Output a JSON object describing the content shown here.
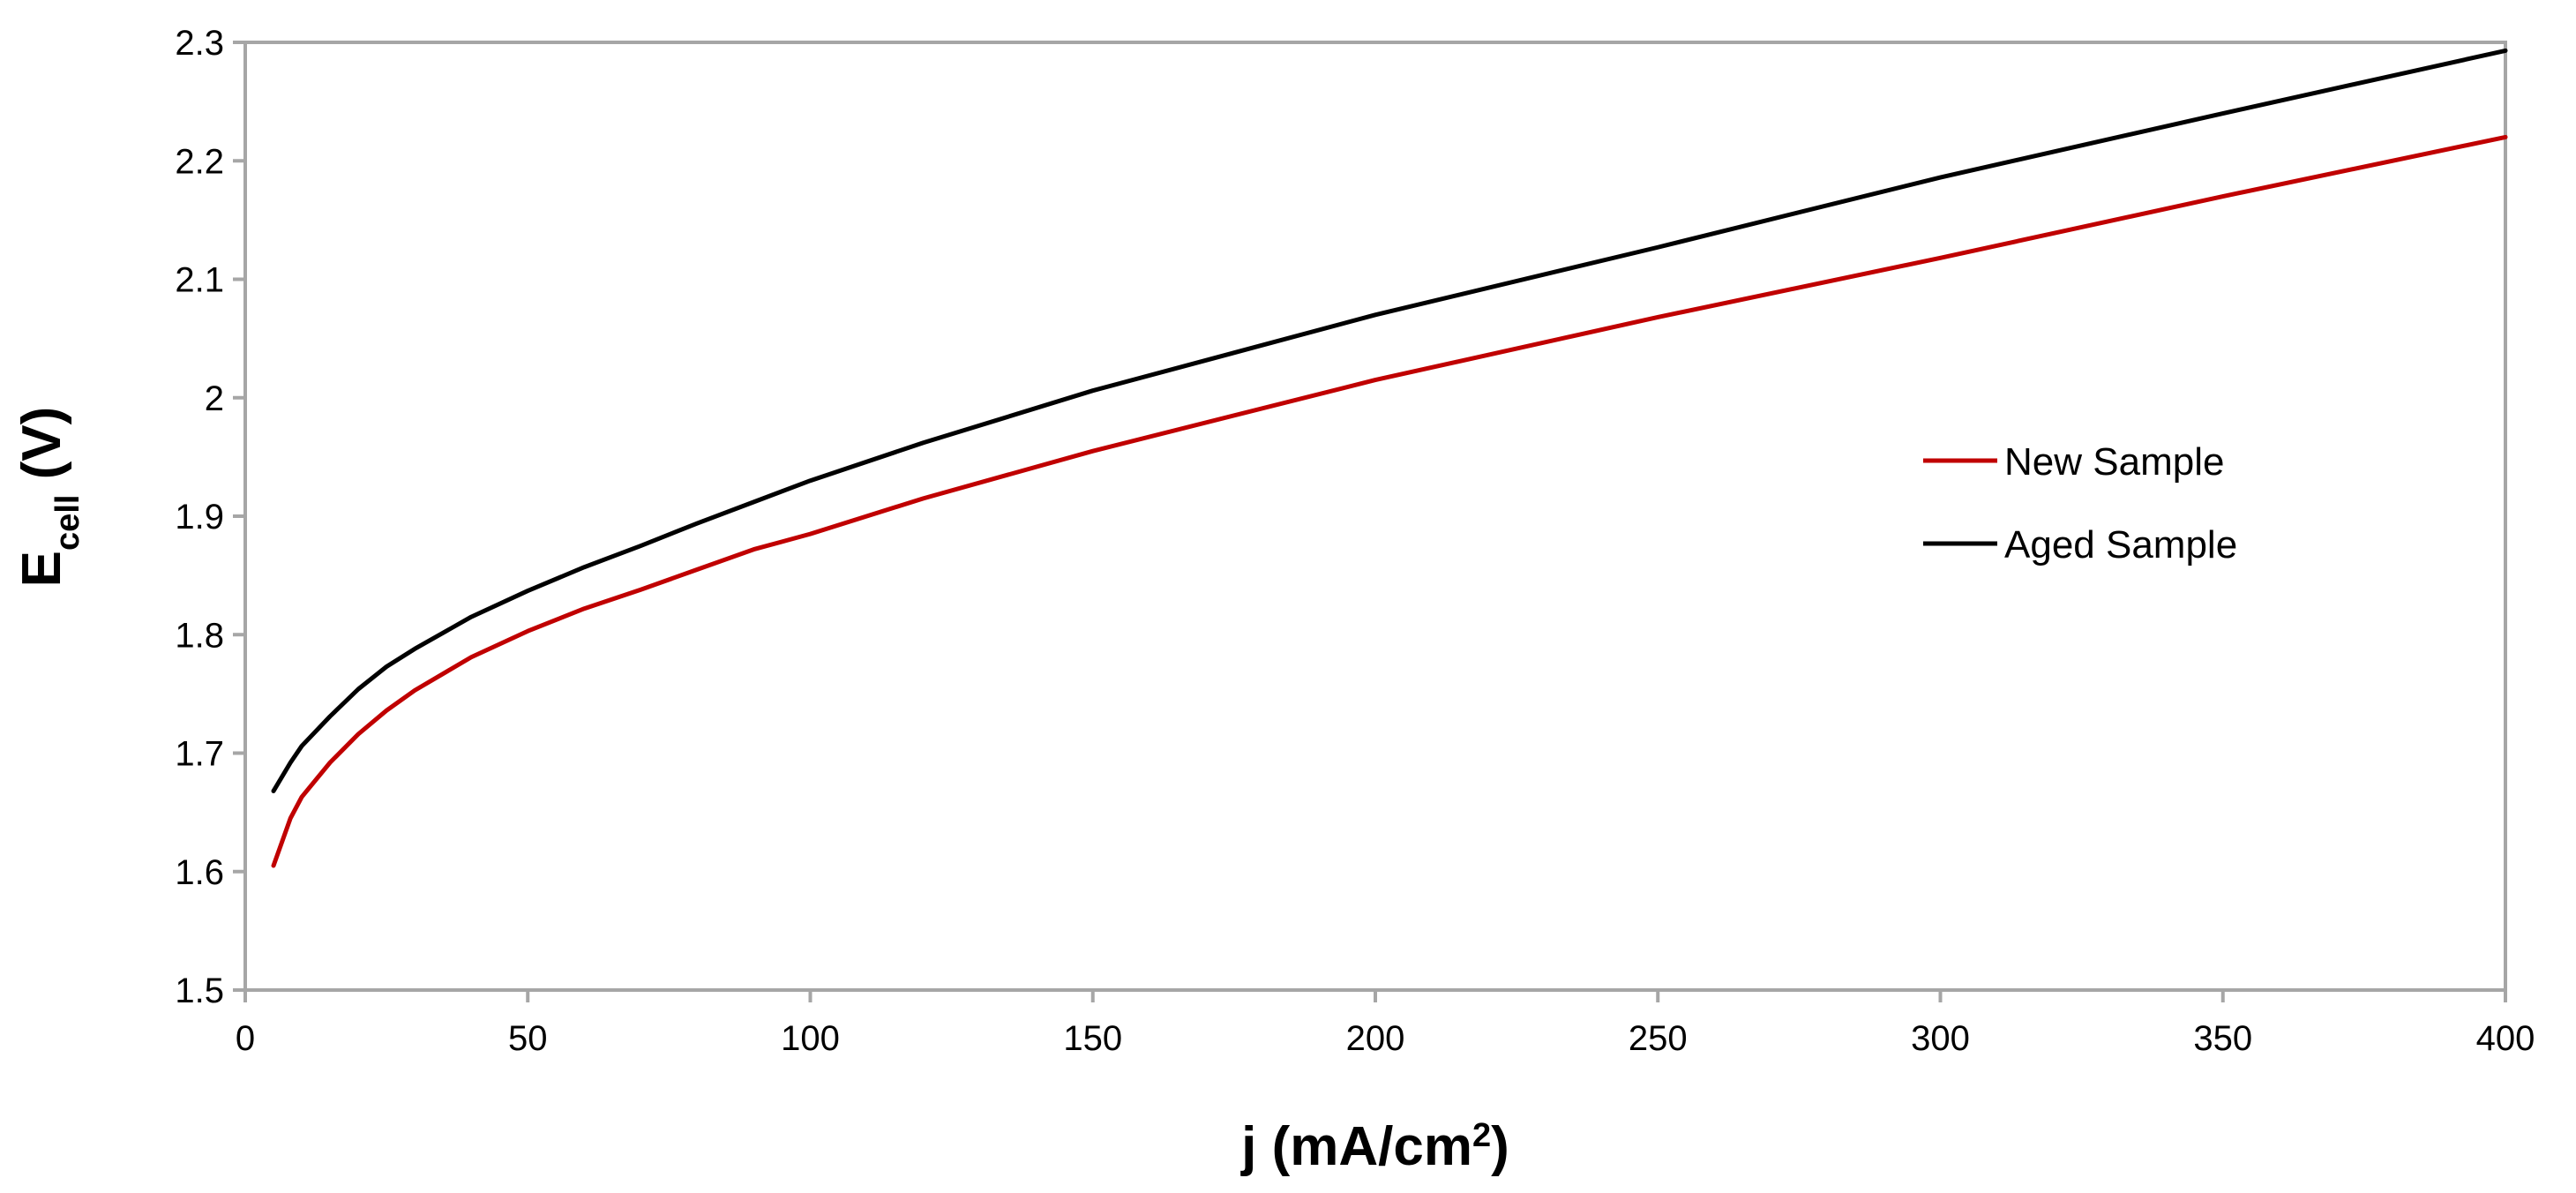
{
  "chart_data": {
    "type": "line",
    "xlabel": {
      "main": "j (mA/cm",
      "sup": "2",
      "end": ")"
    },
    "ylabel": {
      "main": "E",
      "sub": "cell",
      "end": " (V)"
    },
    "xlim": [
      0,
      400
    ],
    "ylim": [
      1.5,
      2.3
    ],
    "xticks": [
      0,
      50,
      100,
      150,
      200,
      250,
      300,
      350,
      400
    ],
    "yticks": [
      1.5,
      1.6,
      1.7,
      1.8,
      1.9,
      2,
      2.1,
      2.2,
      2.3
    ],
    "xtick_labels": [
      "0",
      "50",
      "100",
      "150",
      "200",
      "250",
      "300",
      "350",
      "400"
    ],
    "ytick_labels": [
      "1.5",
      "1.6",
      "1.7",
      "1.8",
      "1.9",
      "2",
      "2.1",
      "2.2",
      "2.3"
    ],
    "grid": false,
    "legend_position": "center-right",
    "series": [
      {
        "name": "New Sample",
        "color": "#c00000",
        "x": [
          5,
          8,
          10,
          15,
          20,
          25,
          30,
          40,
          50,
          60,
          70,
          80,
          90,
          100,
          120,
          150,
          200,
          250,
          300,
          350,
          400
        ],
        "y": [
          1.605,
          1.645,
          1.663,
          1.692,
          1.716,
          1.736,
          1.753,
          1.781,
          1.803,
          1.822,
          1.838,
          1.855,
          1.872,
          1.885,
          1.915,
          1.955,
          2.015,
          2.068,
          2.118,
          2.17,
          2.22
        ]
      },
      {
        "name": "Aged Sample",
        "color": "#000000",
        "x": [
          5,
          8,
          10,
          15,
          20,
          25,
          30,
          40,
          50,
          60,
          70,
          80,
          90,
          100,
          120,
          150,
          200,
          250,
          300,
          350,
          400
        ],
        "y": [
          1.668,
          1.692,
          1.706,
          1.731,
          1.754,
          1.773,
          1.788,
          1.815,
          1.837,
          1.857,
          1.875,
          1.894,
          1.912,
          1.93,
          1.962,
          2.006,
          2.07,
          2.127,
          2.186,
          2.24,
          2.293
        ]
      }
    ]
  }
}
